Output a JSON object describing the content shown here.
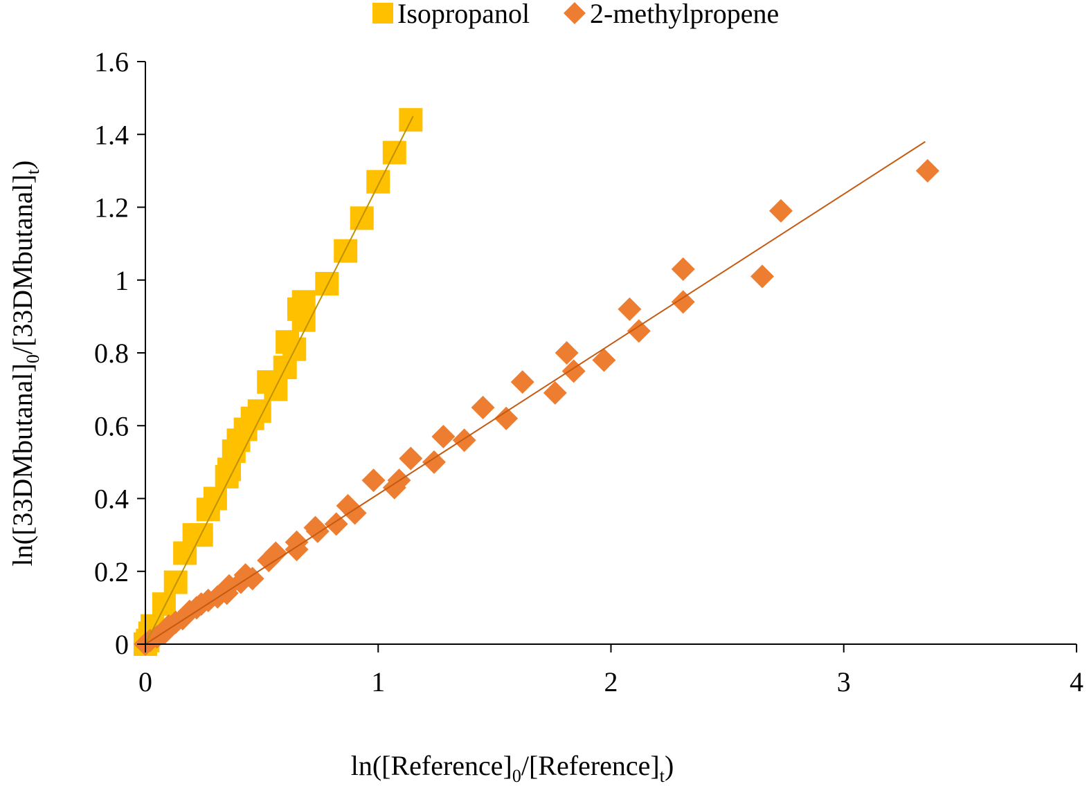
{
  "chart_data": {
    "type": "scatter",
    "xlabel": {
      "prefix": "ln([Reference]",
      "sub0": "0",
      "mid": "/[Reference]",
      "subt": "t",
      "suffix": ")"
    },
    "ylabel": {
      "prefix": "ln([33DMbutanal]",
      "sub0": "0",
      "mid": "/[33DMbutanal]",
      "subt": "t",
      "suffix": ")"
    },
    "xlim": [
      0,
      4
    ],
    "ylim": [
      0,
      1.6
    ],
    "xticks": [
      0,
      1,
      2,
      3,
      4
    ],
    "yticks": [
      0,
      0.2,
      0.4,
      0.6,
      0.8,
      1,
      1.2,
      1.4,
      1.6
    ],
    "ytick_labels": [
      "0",
      "0.2",
      "0.4",
      "0.6",
      "0.8",
      "1",
      "1.2",
      "1.4",
      "1.6"
    ],
    "xtick_labels": [
      "0",
      "1",
      "2",
      "3",
      "4"
    ],
    "grid": false,
    "legend_position": "top-center",
    "series": [
      {
        "name": "Isopropanol",
        "marker": "square",
        "color": "#FFC000",
        "trendline_color": "#BF9000",
        "trendline": {
          "x": [
            0,
            1.15
          ],
          "y": [
            0,
            1.45
          ]
        },
        "points": [
          [
            0,
            0
          ],
          [
            0.01,
            0.01
          ],
          [
            0.02,
            0.03
          ],
          [
            0.03,
            0.05
          ],
          [
            0.08,
            0.11
          ],
          [
            0.13,
            0.17
          ],
          [
            0.17,
            0.25
          ],
          [
            0.21,
            0.3
          ],
          [
            0.24,
            0.3
          ],
          [
            0.27,
            0.37
          ],
          [
            0.3,
            0.4
          ],
          [
            0.35,
            0.46
          ],
          [
            0.36,
            0.48
          ],
          [
            0.38,
            0.53
          ],
          [
            0.4,
            0.56
          ],
          [
            0.43,
            0.59
          ],
          [
            0.46,
            0.62
          ],
          [
            0.49,
            0.64
          ],
          [
            0.53,
            0.72
          ],
          [
            0.56,
            0.7
          ],
          [
            0.6,
            0.76
          ],
          [
            0.61,
            0.83
          ],
          [
            0.64,
            0.81
          ],
          [
            0.66,
            0.92
          ],
          [
            0.68,
            0.89
          ],
          [
            0.68,
            0.94
          ],
          [
            0.78,
            0.99
          ],
          [
            0.86,
            1.08
          ],
          [
            0.93,
            1.17
          ],
          [
            1.0,
            1.27
          ],
          [
            1.07,
            1.35
          ],
          [
            1.14,
            1.44
          ]
        ]
      },
      {
        "name": "2-methylpropene",
        "marker": "diamond",
        "color": "#ED7D31",
        "trendline_color": "#C55A11",
        "trendline": {
          "x": [
            0,
            3.35
          ],
          "y": [
            0,
            1.38
          ]
        },
        "points": [
          [
            0,
            0
          ],
          [
            0.02,
            0.01
          ],
          [
            0.05,
            0.02
          ],
          [
            0.08,
            0.03
          ],
          [
            0.1,
            0.05
          ],
          [
            0.13,
            0.06
          ],
          [
            0.16,
            0.07
          ],
          [
            0.19,
            0.09
          ],
          [
            0.22,
            0.1
          ],
          [
            0.24,
            0.11
          ],
          [
            0.27,
            0.12
          ],
          [
            0.31,
            0.13
          ],
          [
            0.35,
            0.14
          ],
          [
            0.36,
            0.16
          ],
          [
            0.41,
            0.17
          ],
          [
            0.43,
            0.19
          ],
          [
            0.46,
            0.18
          ],
          [
            0.53,
            0.23
          ],
          [
            0.56,
            0.25
          ],
          [
            0.65,
            0.26
          ],
          [
            0.65,
            0.28
          ],
          [
            0.73,
            0.32
          ],
          [
            0.74,
            0.31
          ],
          [
            0.82,
            0.33
          ],
          [
            0.87,
            0.38
          ],
          [
            0.9,
            0.36
          ],
          [
            0.98,
            0.45
          ],
          [
            1.07,
            0.43
          ],
          [
            1.09,
            0.45
          ],
          [
            1.14,
            0.51
          ],
          [
            1.24,
            0.5
          ],
          [
            1.28,
            0.57
          ],
          [
            1.37,
            0.56
          ],
          [
            1.45,
            0.65
          ],
          [
            1.55,
            0.62
          ],
          [
            1.62,
            0.72
          ],
          [
            1.76,
            0.69
          ],
          [
            1.81,
            0.8
          ],
          [
            1.84,
            0.75
          ],
          [
            1.97,
            0.78
          ],
          [
            2.08,
            0.92
          ],
          [
            2.12,
            0.86
          ],
          [
            2.31,
            0.94
          ],
          [
            2.31,
            1.03
          ],
          [
            2.65,
            1.01
          ],
          [
            2.73,
            1.19
          ],
          [
            3.36,
            1.3
          ]
        ]
      }
    ]
  }
}
